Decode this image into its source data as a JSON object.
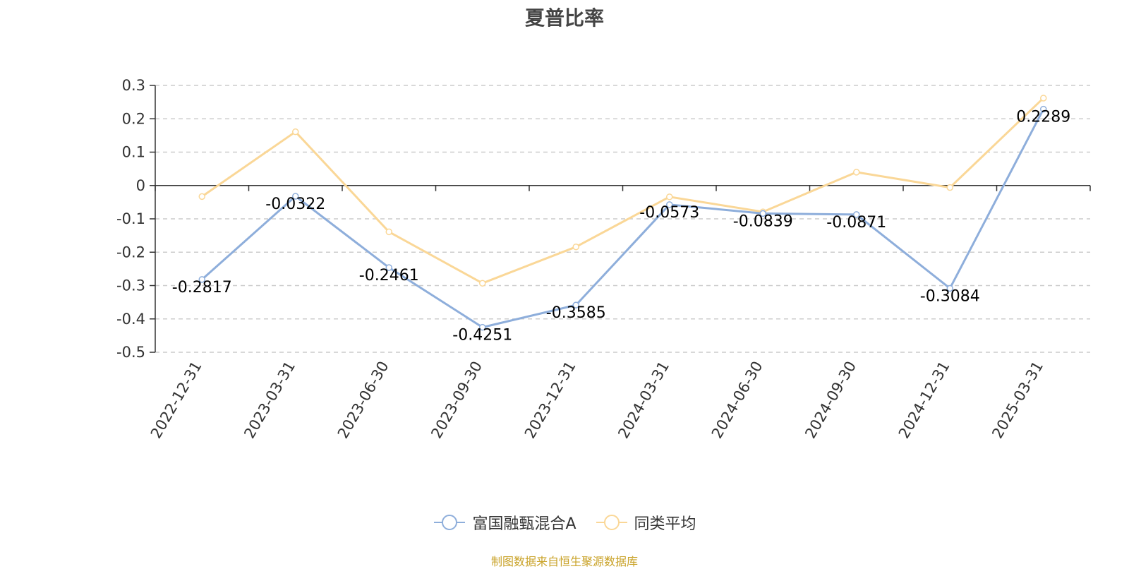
{
  "chart_data": {
    "type": "line",
    "title": "夏普比率",
    "categories": [
      "2022-12-31",
      "2023-03-31",
      "2023-06-30",
      "2023-09-30",
      "2023-12-31",
      "2024-03-31",
      "2024-06-30",
      "2024-09-30",
      "2024-12-31",
      "2025-03-31"
    ],
    "series": [
      {
        "name": "富国融甄混合A",
        "color": "#8eaedb",
        "values": [
          -0.2817,
          -0.0322,
          -0.2461,
          -0.4251,
          -0.3585,
          -0.0573,
          -0.0839,
          -0.0871,
          -0.3084,
          0.2289
        ],
        "labels": [
          "-0.2817",
          "-0.0322",
          "-0.2461",
          "-0.4251",
          "-0.3585",
          "-0.0573",
          "-0.0839",
          "-0.0871",
          "-0.3084",
          "0.2289"
        ]
      },
      {
        "name": "同类平均",
        "color": "#fad797",
        "values": [
          -0.033,
          0.161,
          -0.139,
          -0.293,
          -0.184,
          -0.034,
          -0.079,
          0.04,
          -0.006,
          0.262
        ]
      }
    ],
    "y_ticks": [
      0.3,
      0.2,
      0.1,
      0,
      -0.1,
      -0.2,
      -0.3,
      -0.4,
      -0.5
    ],
    "y_tick_labels": [
      "0.3",
      "0.2",
      "0.1",
      "0",
      "-0.1",
      "-0.2",
      "-0.3",
      "-0.4",
      "-0.5"
    ],
    "ylim": [
      -0.5,
      0.3
    ],
    "grid": true,
    "legend_position": "bottom-center"
  },
  "source_note": "制图数据来自恒生聚源数据库"
}
